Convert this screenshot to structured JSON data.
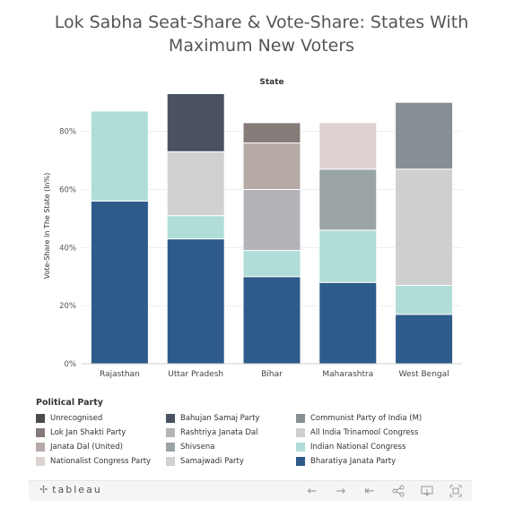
{
  "title_line1": "Lok Sabha Seat-Share & Vote-Share: States With",
  "title_line2": "Maximum New Voters",
  "brand": "tableau",
  "chart_data": {
    "type": "bar",
    "stacked": true,
    "header": "State",
    "ylabel": "Vote-Share In The State (In%)",
    "ylim": [
      0,
      95
    ],
    "yticks": [
      0,
      20,
      40,
      60,
      80
    ],
    "ytick_labels": [
      "0%",
      "20%",
      "40%",
      "60%",
      "80%"
    ],
    "categories": [
      "Rajasthan",
      "Uttar Pradesh",
      "Bihar",
      "Maharashtra",
      "West Bengal"
    ],
    "legend_title": "Political Party",
    "parties": [
      {
        "name": "Unrecognised",
        "color": "#4e4b48"
      },
      {
        "name": "Lok Jan Shakti Party",
        "color": "#857c79"
      },
      {
        "name": "Janata Dal (United)",
        "color": "#b5aaa6"
      },
      {
        "name": "Nationalist Congress Party",
        "color": "#ddd2cf"
      },
      {
        "name": "Bahujan Samaj Party",
        "color": "#4a5262"
      },
      {
        "name": "Rashtriya Janata Dal",
        "color": "#b2b4b8"
      },
      {
        "name": "Shivsena",
        "color": "#9aa3a6"
      },
      {
        "name": "Samajwadi Party",
        "color": "#d1d1d1"
      },
      {
        "name": "Communist Party of India (M)",
        "color": "#888f94"
      },
      {
        "name": "All India Trinamool Congress",
        "color": "#cfcfcf"
      },
      {
        "name": "Indian National Congress",
        "color": "#b0ddd8"
      },
      {
        "name": "Bharatiya Janata Party",
        "color": "#2e5b8a"
      }
    ],
    "stack_order": [
      "Bharatiya Janata Party",
      "Indian National Congress",
      "Shivsena",
      "Rashtriya Janata Dal",
      "Samajwadi Party",
      "All India Trinamool Congress",
      "Janata Dal (United)",
      "Nationalist Congress Party",
      "Lok Jan Shakti Party",
      "Bahujan Samaj Party",
      "Communist Party of India (M)",
      "Unrecognised"
    ],
    "series": [
      {
        "name": "Bharatiya Janata Party",
        "values": [
          56,
          43,
          30,
          28,
          17
        ]
      },
      {
        "name": "Indian National Congress",
        "values": [
          31,
          8,
          9,
          18,
          10
        ]
      },
      {
        "name": "Shivsena",
        "values": [
          0,
          0,
          0,
          21,
          0
        ]
      },
      {
        "name": "Rashtriya Janata Dal",
        "values": [
          0,
          0,
          21,
          0,
          0
        ]
      },
      {
        "name": "Samajwadi Party",
        "values": [
          0,
          22,
          0,
          0,
          0
        ]
      },
      {
        "name": "All India Trinamool Congress",
        "values": [
          0,
          0,
          0,
          0,
          40
        ]
      },
      {
        "name": "Janata Dal (United)",
        "values": [
          0,
          0,
          16,
          0,
          0
        ]
      },
      {
        "name": "Nationalist Congress Party",
        "values": [
          0,
          0,
          0,
          16,
          0
        ]
      },
      {
        "name": "Lok Jan Shakti Party",
        "values": [
          0,
          0,
          7,
          0,
          0
        ]
      },
      {
        "name": "Bahujan Samaj Party",
        "values": [
          0,
          20,
          0,
          0,
          0
        ]
      },
      {
        "name": "Communist Party of India (M)",
        "values": [
          0,
          0,
          0,
          0,
          23
        ]
      },
      {
        "name": "Unrecognised",
        "values": [
          0,
          0,
          0,
          0,
          0
        ]
      }
    ]
  }
}
